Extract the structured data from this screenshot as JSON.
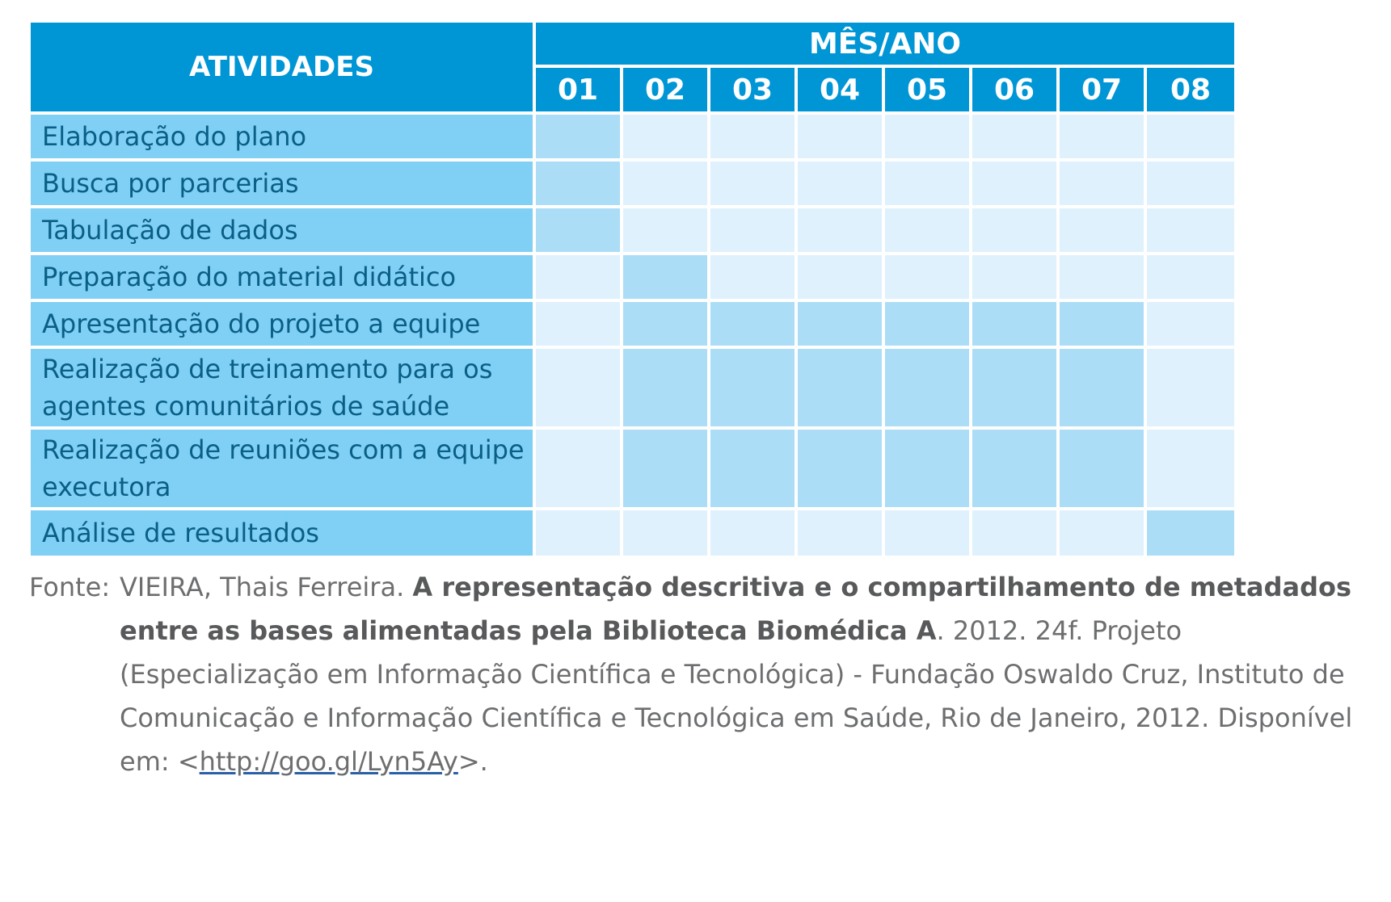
{
  "table": {
    "header_activities": "ATIVIDADES",
    "header_period": "MÊS/ANO",
    "months": [
      "01",
      "02",
      "03",
      "04",
      "05",
      "06",
      "07",
      "08"
    ],
    "rows": [
      {
        "label_lines": [
          "Elaboração do plano"
        ],
        "active_months": [
          "01"
        ]
      },
      {
        "label_lines": [
          "Busca por parcerias"
        ],
        "active_months": [
          "01"
        ]
      },
      {
        "label_lines": [
          "Tabulação de dados"
        ],
        "active_months": [
          "01"
        ]
      },
      {
        "label_lines": [
          "Preparação do material didático"
        ],
        "active_months": [
          "02"
        ]
      },
      {
        "label_lines": [
          "Apresentação do projeto a equipe"
        ],
        "active_months": [
          "02",
          "03",
          "04",
          "05",
          "06",
          "07"
        ]
      },
      {
        "label_lines": [
          "Realização de treinamento para os",
          "agentes comunitários de saúde"
        ],
        "active_months": [
          "02",
          "03",
          "04",
          "05",
          "06",
          "07"
        ]
      },
      {
        "label_lines": [
          "Realização de reuniões com a equipe",
          "executora"
        ],
        "active_months": [
          "02",
          "03",
          "04",
          "05",
          "06",
          "07"
        ]
      },
      {
        "label_lines": [
          "Análise de resultados"
        ],
        "active_months": [
          "08"
        ]
      }
    ],
    "colors": {
      "header": "#0096d6",
      "activity_cell": "#80cff5",
      "active_cell": "#abddf7",
      "inactive_cell": "#dff1fc",
      "activity_text": "#0a5f86"
    }
  },
  "source": {
    "label": "Fonte:",
    "author": "VIEIRA, Thais Ferreira.",
    "title": "A representação descritiva e o compartilhamento de metadados entre as bases alimentadas pela Biblioteca Biomédica A",
    "details": ". 2012. 24f. Projeto (Especialização em Informação Científica e Tecnológica) - Fundação Oswaldo Cruz, Instituto de Comunicação e Informação Científica e Tecnológica em Saúde, Rio de Janeiro, 2012. Disponível em: <",
    "link_text": "http://goo.gl/Lyn5Ay",
    "closing": ">."
  }
}
